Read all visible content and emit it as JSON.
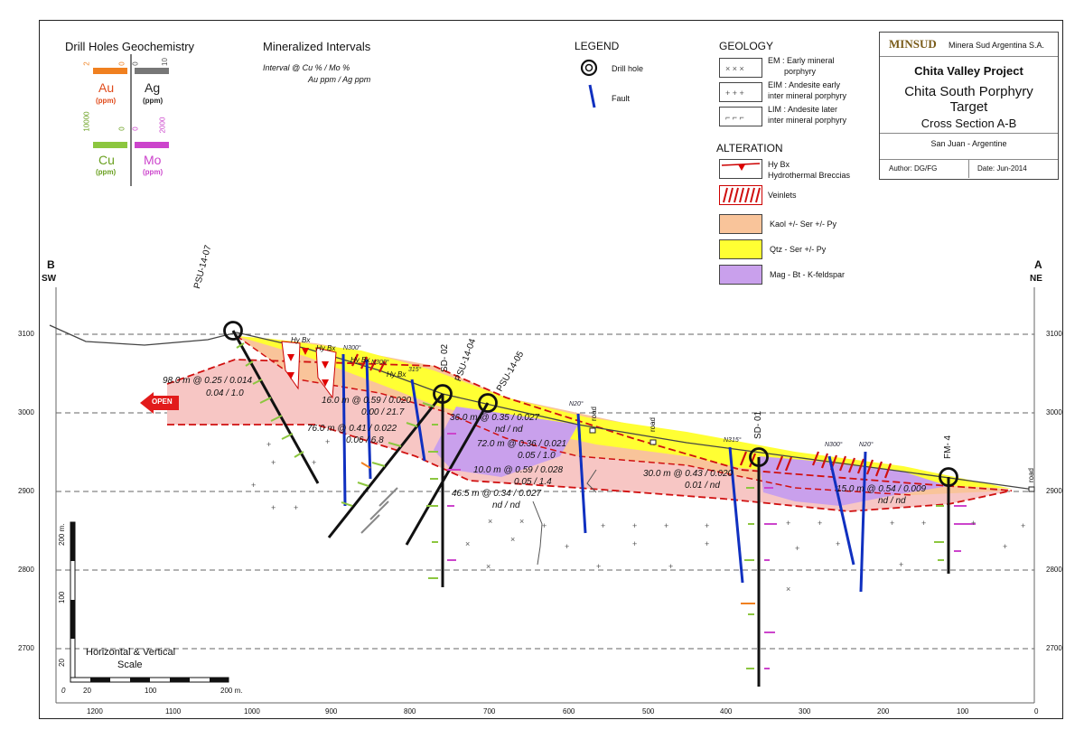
{
  "geochem": {
    "title": "Drill Holes Geochemistry",
    "au": {
      "label": "Au",
      "unit": "(ppm)",
      "scale_max": "2",
      "scale_min": "0",
      "color": "#f08020"
    },
    "ag": {
      "label": "Ag",
      "unit": "(ppm)",
      "scale_min": "0",
      "scale_max": "10",
      "color": "#777777"
    },
    "cu": {
      "label": "Cu",
      "unit": "(ppm)",
      "scale_max": "10000",
      "scale_min": "0",
      "color": "#8cc63f"
    },
    "mo": {
      "label": "Mo",
      "unit": "(ppm)",
      "scale_min": "0",
      "scale_max": "2000",
      "color": "#cc44cc"
    }
  },
  "intervals_legend": {
    "title": "Mineralized Intervals",
    "line1": "Interval @ Cu %   /  Mo %",
    "line2": "Au ppm / Ag ppm"
  },
  "legend": {
    "title": "LEGEND",
    "drill_hole": "Drill hole",
    "fault": "Fault"
  },
  "geology": {
    "title": "GEOLOGY",
    "em": [
      "EM : Early mineral",
      "porphyry"
    ],
    "eim": [
      "EIM : Andesite early",
      "inter mineral porphyry"
    ],
    "lim": [
      "LIM : Andesite later",
      "inter mineral porphyry"
    ]
  },
  "alteration": {
    "title": "ALTERATION",
    "hybx": [
      "Hy Bx",
      "Hydrothermal Breccias"
    ],
    "veinlets": "Veinlets",
    "kaol": "Kaol +/- Ser +/- Py",
    "qtz": "Qtz - Ser +/- Py",
    "mag": "Mag - Bt - K-feldspar",
    "colors": {
      "kaol": "#f9c49a",
      "qtz": "#ffff33",
      "mag": "#c9a0ec",
      "pink": "#f7c6c4"
    }
  },
  "titlebox": {
    "logo": "MINSUD",
    "company": "Minera Sud Argentina S.A.",
    "project": "Chita Valley Project",
    "target1": "Chita South Porphyry",
    "target2": "Target",
    "section": "Cross Section A-B",
    "location": "San Juan - Argentine",
    "author": "Author:  DG/FG",
    "date": "Date:  Jun-2014"
  },
  "section": {
    "left_letter": "B",
    "left_dir": "SW",
    "right_letter": "A",
    "right_dir": "NE",
    "open_label": "OPEN",
    "elevations": [
      "3100",
      "3000",
      "2900",
      "2800",
      "2700"
    ],
    "x_ticks": [
      "1200",
      "1100",
      "1000",
      "900",
      "800",
      "700",
      "600",
      "500",
      "400",
      "300",
      "200",
      "100",
      "0"
    ],
    "scale_label": [
      "Horizontal & Vertical",
      "Scale"
    ],
    "scale_ticks_h": [
      "0",
      "20",
      "100",
      "200 m."
    ],
    "scale_ticks_v": [
      "20",
      "100",
      "200 m."
    ],
    "holes": [
      "PSU-14-07",
      "SD- 02",
      "PSU-14-04",
      "PSU-14-05",
      "SD- 01",
      "FM- 4"
    ],
    "faults": [
      "N300°",
      "N300°",
      "315°",
      "N20°",
      "N315°",
      "N300°",
      "N20°"
    ],
    "hybx_labels": [
      "Hy Bx",
      "Hy Bx",
      "Hy Bx",
      "Hy Bx"
    ],
    "road": "road",
    "intervals": [
      [
        "98.0 m @ 0.25 / 0.014",
        "0.04 / 1.0"
      ],
      [
        "16.0 m @ 0.59 / 0.020",
        "0.00 / 21.7"
      ],
      [
        "76.0 m @ 0.41 / 0.022",
        "0.06 / 6.8"
      ],
      [
        "36.0 m @ 0.35 / 0.027",
        "nd  /  nd"
      ],
      [
        "72.0 m @ 0.36 / 0.021",
        "0.05 / 1.0"
      ],
      [
        "10.0 m @ 0.59 / 0.028",
        "0.05 / 1.4"
      ],
      [
        "46.5 m @ 0.34 / 0.027",
        "nd  /  nd"
      ],
      [
        "30.0 m @ 0.43 / 0.020",
        "0.01 /  nd"
      ],
      [
        "15.0 m @ 0.54 / 0.009",
        "nd  /  nd"
      ]
    ]
  }
}
